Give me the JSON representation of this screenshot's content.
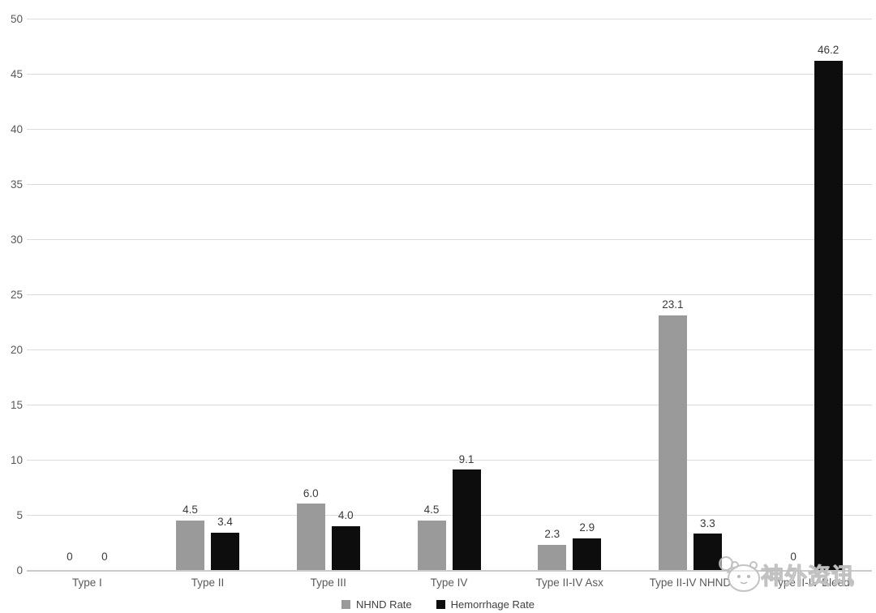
{
  "chart_data": {
    "type": "bar",
    "title": "",
    "xlabel": "",
    "ylabel": "",
    "categories": [
      "Type I",
      "Type II",
      "Type III",
      "Type IV",
      "Type II-IV Asx",
      "Type II-IV NHND",
      "Type II-IV Bleed"
    ],
    "series": [
      {
        "name": "NHND Rate",
        "color": "#9a9a9a",
        "values": [
          0,
          4.5,
          6.0,
          4.5,
          2.3,
          23.1,
          0
        ],
        "labels": [
          "0",
          "4.5",
          "6.0",
          "4.5",
          "2.3",
          "23.1",
          "0"
        ]
      },
      {
        "name": "Hemorrhage Rate",
        "color": "#0d0d0d",
        "values": [
          0,
          3.4,
          4.0,
          9.1,
          2.9,
          3.3,
          46.2
        ],
        "labels": [
          "0",
          "3.4",
          "4.0",
          "9.1",
          "2.9",
          "3.3",
          "46.2"
        ]
      }
    ],
    "ylim": [
      0,
      50
    ],
    "yticks": [
      0,
      5,
      10,
      15,
      20,
      25,
      30,
      35,
      40,
      45,
      50
    ],
    "grid": true,
    "legend_position": "bottom"
  },
  "watermark": {
    "text": "神外资讯",
    "logo": "mascot-logo-icon"
  },
  "colors": {
    "nhnd_bar": "#9a9a9a",
    "hemorrhage_bar": "#0d0d0d",
    "gridline": "#dcdcdc",
    "axis_line": "#cbcbcb",
    "axis_text": "#595959",
    "data_label_text": "#3a3a3a",
    "background": "#ffffff"
  }
}
